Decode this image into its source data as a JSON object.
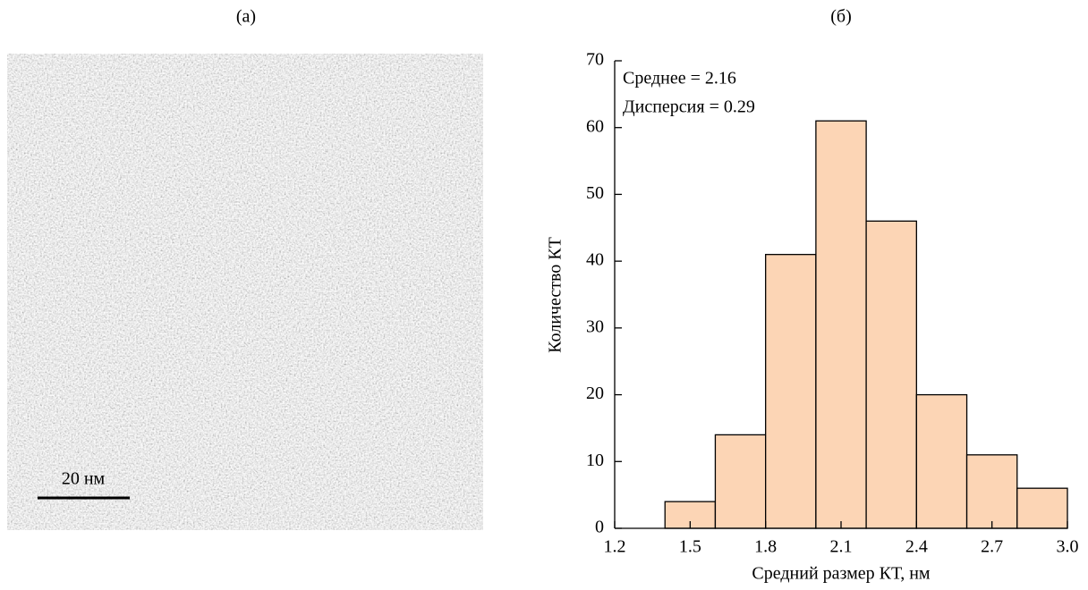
{
  "image_panel": {
    "label": "(a)",
    "scale_bar": "20 нм"
  },
  "chart_data": {
    "type": "histogram",
    "title": "(б)",
    "x_label": "Средний размер КТ, нм",
    "y_label": "Количество КТ",
    "annotations": [
      "Среднее = 2.16",
      "Дисперсия = 0.29"
    ],
    "bins": [
      1.4,
      1.6,
      1.8,
      2.0,
      2.2,
      2.4,
      2.6,
      2.8,
      3.0
    ],
    "values": [
      4,
      14,
      41,
      61,
      46,
      20,
      11,
      6
    ],
    "color": "#fcd5b5",
    "xlim": [
      1.2,
      3.0
    ],
    "xticks": [
      1.2,
      1.5,
      1.8,
      2.1,
      2.4,
      2.7,
      {
        "value": 3,
        "label": "3.0"
      }
    ],
    "ylim": [
      0,
      70
    ],
    "yticks": [
      0,
      10,
      20,
      30,
      40,
      50,
      60,
      70
    ]
  }
}
